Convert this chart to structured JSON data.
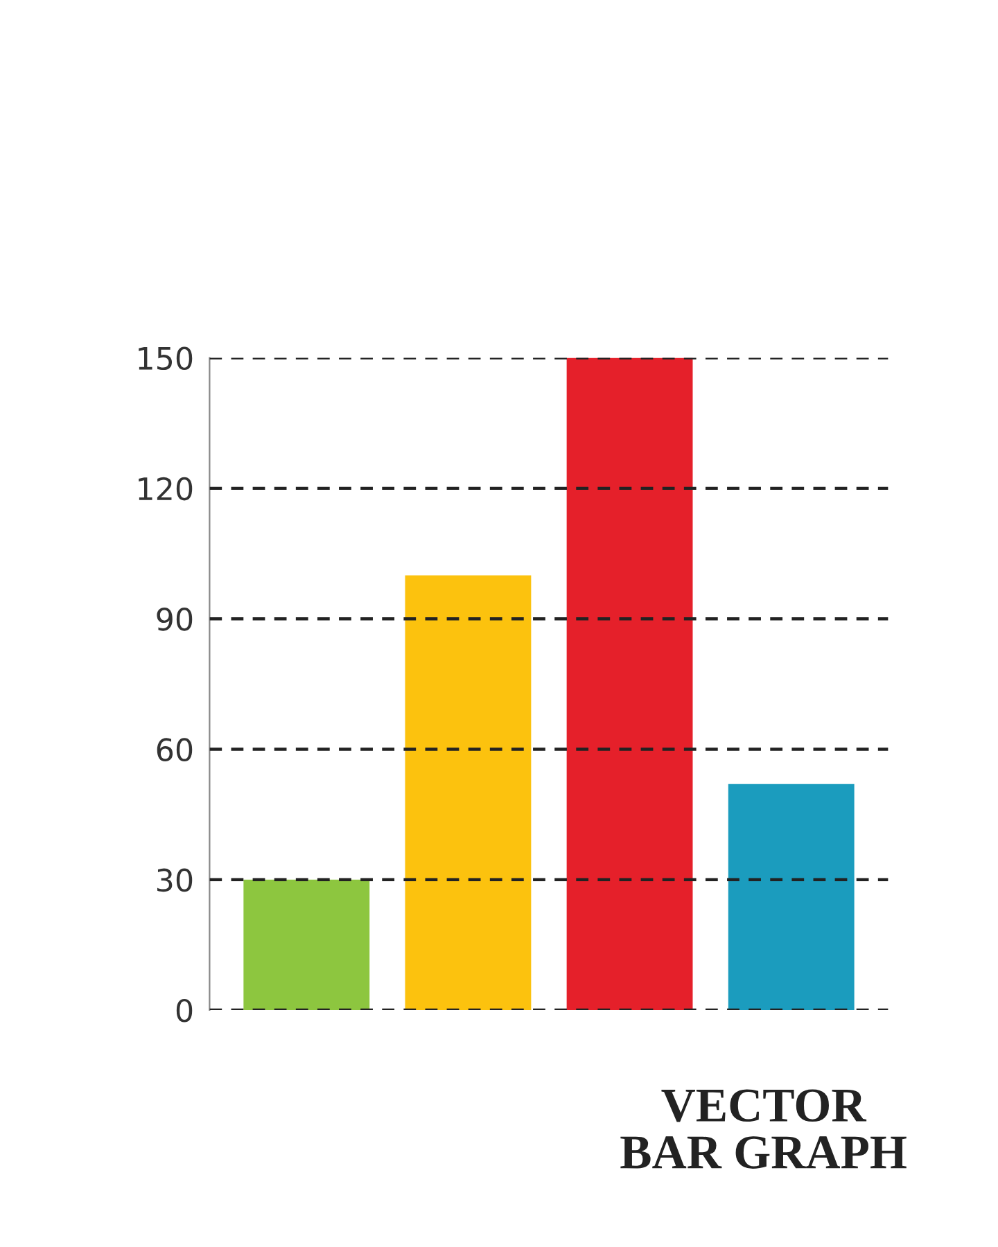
{
  "chart_data": {
    "type": "bar",
    "title": "VECTOR\nBAR GRAPH",
    "categories": [
      null,
      null,
      null,
      null
    ],
    "values": [
      30,
      100,
      150,
      52
    ],
    "colors": [
      "#8dc63f",
      "#fcc20e",
      "#e5202a",
      "#1b9cbe"
    ],
    "ylim": [
      0,
      150
    ],
    "yticks": [
      0,
      30,
      60,
      90,
      120,
      150
    ],
    "grid": "y",
    "tick_labels": "y"
  }
}
